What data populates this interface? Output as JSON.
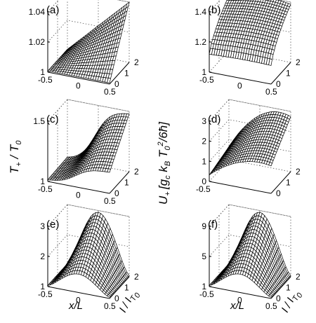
{
  "chart_data": {
    "type": "surface",
    "x_axis": {
      "label": "x/L",
      "range": [
        -0.5,
        0.5
      ],
      "ticks": [
        "-0.5",
        "0",
        "0.5"
      ]
    },
    "y_axis": {
      "label": "I/I_T0",
      "label_main": "I / I",
      "label_sub": "T",
      "label_subsub": "0",
      "range": [
        0,
        2
      ],
      "ticks": [
        "0",
        "1",
        "2"
      ]
    },
    "left_z_label": {
      "main": "T",
      "sub": "+",
      "rest": " / T",
      "sub2": "0"
    },
    "right_z_label": {
      "main": "U",
      "sub": "+",
      "bracket": "[g",
      "bracket_sub": "c",
      "k": " k",
      "k_sub": "B",
      "t": " T",
      "t_sub": "0",
      "t_sup": "2",
      "tail": "/6ħ]"
    },
    "panels": [
      {
        "tag": "(a)",
        "z_range": [
          1,
          1.04
        ],
        "z_ticks": [
          "1",
          "1.02",
          "1.04"
        ],
        "shape": "linear",
        "z_max": 1.04,
        "show_x_ticks": true,
        "show_y_ticks": true
      },
      {
        "tag": "(b)",
        "z_range": [
          1,
          1.4
        ],
        "z_ticks": [
          "1",
          "1.2",
          "1.4"
        ],
        "shape": "flat",
        "z_max": 1.4,
        "show_x_ticks": true,
        "show_y_ticks": true
      },
      {
        "tag": "(c)",
        "z_range": [
          1,
          1.5
        ],
        "z_ticks": [
          "1",
          "1.5"
        ],
        "shape": "sigmoid",
        "z_max": 1.5,
        "show_x_ticks": true,
        "show_y_ticks": true
      },
      {
        "tag": "(d)",
        "z_range": [
          0,
          3
        ],
        "z_ticks": [
          "0",
          "1",
          "2",
          "3"
        ],
        "shape": "sqrtlike",
        "z_max": 3,
        "show_x_ticks": false,
        "show_y_ticks": true
      },
      {
        "tag": "(e)",
        "z_range": [
          1,
          3
        ],
        "z_ticks": [
          "1",
          "2",
          "3"
        ],
        "shape": "dome",
        "z_max": 3,
        "show_x_ticks": true,
        "show_y_ticks": true
      },
      {
        "tag": "(f)",
        "z_range": [
          1,
          9
        ],
        "z_ticks": [
          "1",
          "5",
          "9"
        ],
        "shape": "dome",
        "z_max": 9,
        "show_x_ticks": true,
        "show_y_ticks": true
      }
    ],
    "colors": {
      "surface": "#ffffff",
      "mesh": "#000000",
      "box": "#555555"
    }
  }
}
